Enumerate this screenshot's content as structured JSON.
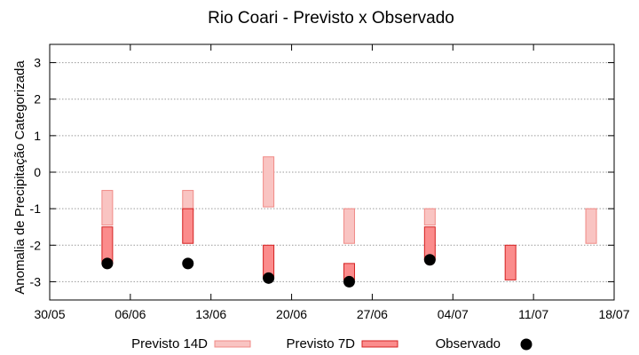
{
  "chart_data": {
    "type": "floating-bar",
    "title": "Rio Coari - Previsto x Observado",
    "subtitle": "",
    "xlabel": "",
    "ylabel": "Anomalia de Precipitação Categorizada",
    "x_ticks": [
      "30/05",
      "06/06",
      "13/06",
      "20/06",
      "27/06",
      "04/07",
      "11/07",
      "18/07"
    ],
    "xlim": [
      "2024-05-30",
      "2024-07-18"
    ],
    "y_ticks": [
      "3",
      "2",
      "1",
      "0",
      "-1",
      "-2",
      "-3"
    ],
    "ylim": [
      -3.5,
      3.5
    ],
    "grid": true,
    "legend_position": "bottom",
    "x_dates": [
      "2024-06-04",
      "2024-06-11",
      "2024-06-18",
      "2024-06-25",
      "2024-07-02",
      "2024-07-09",
      "2024-07-16"
    ],
    "series": [
      {
        "name": "Previsto 14D",
        "color": "#f9c4c2",
        "stroke": "#f08a86",
        "ranges": [
          [
            -1.45,
            -0.5
          ],
          [
            -1.05,
            -0.5
          ],
          [
            -0.95,
            0.42
          ],
          [
            -1.95,
            -1.0
          ],
          [
            -1.45,
            -1.0
          ],
          null,
          [
            -1.95,
            -1.0
          ]
        ]
      },
      {
        "name": "Previsto 7D",
        "color": "#fb8c8c",
        "stroke": "#d42020",
        "ranges": [
          [
            -2.5,
            -1.5
          ],
          [
            -1.95,
            -1.0
          ],
          [
            -2.9,
            -2.0
          ],
          [
            -2.95,
            -2.5
          ],
          [
            -2.4,
            -1.5
          ],
          [
            -2.95,
            -2.0
          ],
          null
        ]
      },
      {
        "name": "Observado",
        "color": "#000000",
        "values": [
          -2.5,
          -2.5,
          -2.9,
          -3.0,
          -2.4,
          null,
          null
        ]
      }
    ]
  }
}
